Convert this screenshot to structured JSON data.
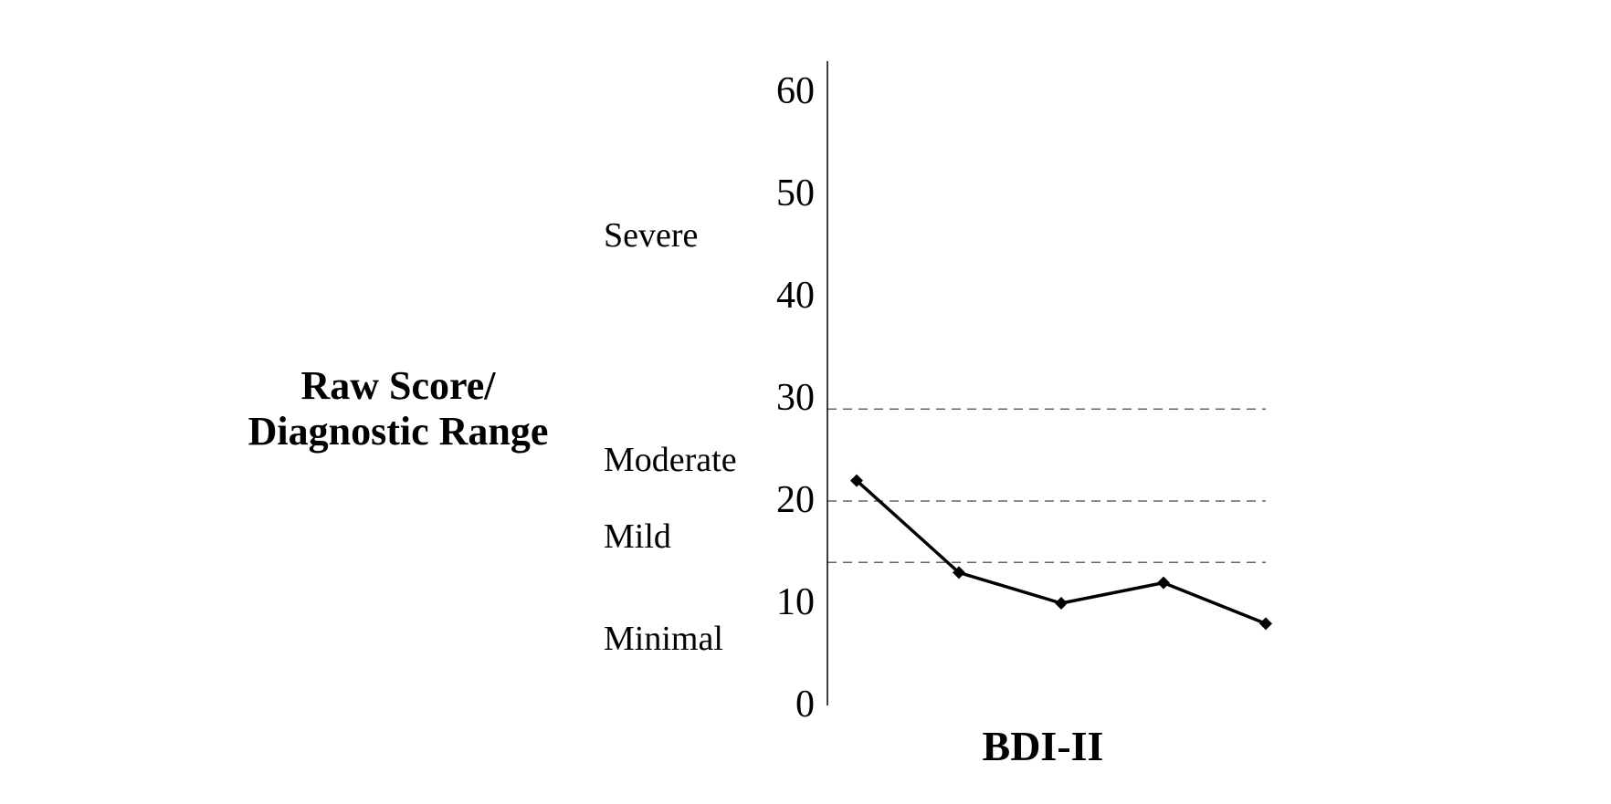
{
  "chart_data": {
    "type": "line",
    "title": "",
    "xlabel": "BDI-II",
    "ylabel": [
      "Raw Score/",
      "Diagnostic Range"
    ],
    "ylim": [
      0,
      63
    ],
    "yticks": [
      0,
      10,
      20,
      30,
      40,
      50,
      60
    ],
    "grid": false,
    "legend": "none",
    "x": [
      1,
      2,
      3,
      4,
      5
    ],
    "series": [
      {
        "values": [
          22,
          13,
          10,
          12,
          8
        ],
        "marker": "diamond",
        "color": "#000000"
      }
    ],
    "thresholds": [
      14,
      20,
      29
    ],
    "ranges": [
      {
        "label": "Severe",
        "at": 46
      },
      {
        "label": "Moderate",
        "at": 24
      },
      {
        "label": "Mild",
        "at": 16.5
      },
      {
        "label": "Minimal",
        "at": 6.5
      }
    ]
  }
}
